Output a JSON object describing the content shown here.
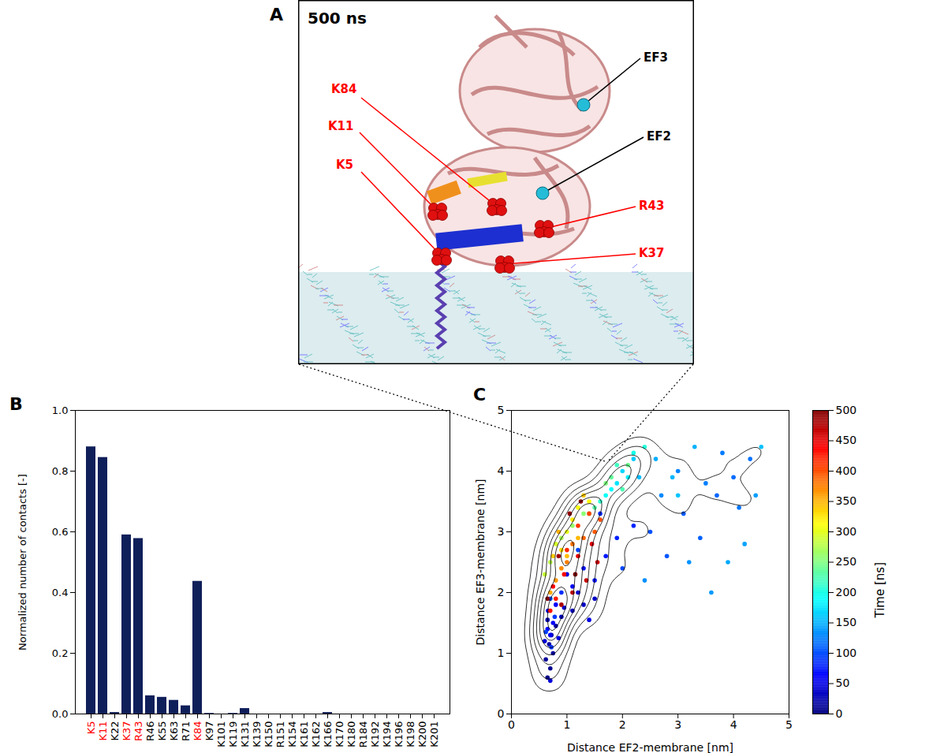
{
  "chart_data": [
    {
      "type": "diagram",
      "panel": "A",
      "title": "500 ns",
      "labels": [
        {
          "text": "K84",
          "color": "red"
        },
        {
          "text": "K11",
          "color": "red"
        },
        {
          "text": "K5",
          "color": "red"
        },
        {
          "text": "R43",
          "color": "red"
        },
        {
          "text": "K37",
          "color": "red"
        },
        {
          "text": "EF3",
          "color": "black"
        },
        {
          "text": "EF2",
          "color": "black"
        }
      ]
    },
    {
      "type": "bar",
      "panel": "B",
      "ylabel": "Normalized number of contacts [-]",
      "categories": [
        "K5",
        "K11",
        "K22",
        "K37",
        "R43",
        "R46",
        "K55",
        "K63",
        "R71",
        "K84",
        "K97",
        "K101",
        "K119",
        "K131",
        "K139",
        "K150",
        "R151",
        "K154",
        "K161",
        "K162",
        "K166",
        "K170",
        "K180",
        "R184",
        "K192",
        "K194",
        "K196",
        "K198",
        "K200",
        "K201"
      ],
      "values": [
        0.88,
        0.845,
        0.005,
        0.59,
        0.578,
        0.06,
        0.055,
        0.045,
        0.027,
        0.437,
        0.002,
        0,
        0.002,
        0.018,
        0,
        0,
        0,
        0,
        0,
        0,
        0.005,
        0,
        0,
        0,
        0,
        0,
        0,
        0,
        0,
        0
      ],
      "color": "#0f1f5a",
      "highlighted": [
        "K5",
        "K11",
        "K37",
        "R43",
        "K84"
      ],
      "highlight_color": "red",
      "ylim": [
        0,
        1
      ],
      "yticks": [
        {
          "value": 0,
          "label": "0.0"
        },
        {
          "value": 0.2,
          "label": "0.2"
        },
        {
          "value": 0.4,
          "label": "0.4"
        },
        {
          "value": 0.6,
          "label": "0.6"
        },
        {
          "value": 0.8,
          "label": "0.8"
        },
        {
          "value": 1,
          "label": "1.0"
        }
      ]
    },
    {
      "type": "scatter",
      "panel": "C",
      "xlabel": "Distance EF2-membrane [nm]",
      "ylabel": "Distance EF3-membrane [nm]",
      "x": [
        0.65,
        0.7,
        0.62,
        0.75,
        0.68,
        0.72,
        0.8,
        0.65,
        0.9,
        1.1,
        1.3,
        1.5,
        1.2,
        0.95,
        0.6,
        0.7,
        1.0,
        1.4,
        0.85,
        0.66,
        0.7,
        0.75,
        0.8,
        0.65,
        1.1,
        1.3,
        1.5,
        1.7,
        1.9,
        2.2,
        1.6,
        0.9,
        0.72,
        0.78,
        0.62,
        1.2,
        2.0,
        0.7,
        2.5,
        2.8,
        3.1,
        3.4,
        3.7,
        4.0,
        4.3,
        4.1,
        3.8,
        3.5,
        3.0,
        2.7,
        2.4,
        3.2,
        3.6,
        4.4,
        4.2,
        3.9,
        2.6,
        3.3,
        2.9,
        2.3,
        4.5,
        3.0,
        2.2,
        2.0,
        1.9,
        2.1,
        1.8,
        1.7,
        2.2,
        2.4,
        1.6,
        1.9,
        2.0,
        1.5,
        1.8,
        2.1,
        1.4,
        1.7,
        1.3,
        1.1,
        0.9,
        0.7,
        0.6,
        0.8,
        1.0,
        1.2,
        1.4,
        1.1,
        0.9,
        0.75,
        1.3,
        1.0,
        1.2,
        0.85,
        0.7,
        0.8,
        0.9,
        1.0,
        1.1,
        1.3,
        1.5,
        1.6,
        1.4,
        1.2,
        1.0,
        0.8,
        0.7,
        0.75,
        0.95,
        1.2,
        1.45,
        1.55,
        1.35,
        1.1,
        0.9,
        0.85,
        1.05,
        1.25,
        0.65,
        1.15
      ],
      "y": [
        0.6,
        0.75,
        0.9,
        1.0,
        1.15,
        1.3,
        1.45,
        1.55,
        1.6,
        1.7,
        1.8,
        1.9,
        2.0,
        1.75,
        1.2,
        0.55,
        2.3,
        1.55,
        1.25,
        1.7,
        1.3,
        1.5,
        1.8,
        1.4,
        2.1,
        2.4,
        2.2,
        2.6,
        2.9,
        3.1,
        3.3,
        2.0,
        1.1,
        1.6,
        1.35,
        2.7,
        2.4,
        1.9,
        3.0,
        2.6,
        3.3,
        2.9,
        3.6,
        3.9,
        4.2,
        3.4,
        4.3,
        3.8,
        4.0,
        3.6,
        2.2,
        2.5,
        2.0,
        3.6,
        2.8,
        2.5,
        4.2,
        4.4,
        3.9,
        3.9,
        4.4,
        3.6,
        4.2,
        4.0,
        3.8,
        3.9,
        3.7,
        3.6,
        4.3,
        4.4,
        3.5,
        4.1,
        3.7,
        3.4,
        3.9,
        4.1,
        3.3,
        3.8,
        3.3,
        3.1,
        2.9,
        2.5,
        2.3,
        2.8,
        3.0,
        3.4,
        3.5,
        3.2,
        2.7,
        2.6,
        3.6,
        2.6,
        2.9,
        3.0,
        2.0,
        2.2,
        2.4,
        2.5,
        2.8,
        2.9,
        3.0,
        3.2,
        3.3,
        3.1,
        2.7,
        1.9,
        1.7,
        2.1,
        2.3,
        2.6,
        2.8,
        2.5,
        2.2,
        2.0,
        1.8,
        2.6,
        3.3,
        3.5,
        1.9,
        2.3
      ],
      "time": [
        5,
        8,
        12,
        15,
        18,
        20,
        22,
        25,
        28,
        30,
        33,
        35,
        38,
        40,
        42,
        44,
        46,
        48,
        50,
        52,
        55,
        58,
        60,
        63,
        66,
        70,
        72,
        75,
        78,
        80,
        83,
        85,
        88,
        90,
        93,
        95,
        97,
        99,
        102,
        105,
        108,
        110,
        112,
        115,
        118,
        120,
        123,
        125,
        128,
        130,
        133,
        135,
        138,
        140,
        142,
        145,
        148,
        150,
        152,
        155,
        157,
        159,
        162,
        168,
        175,
        180,
        186,
        192,
        198,
        205,
        212,
        218,
        225,
        230,
        236,
        241,
        246,
        250,
        255,
        262,
        270,
        278,
        285,
        292,
        300,
        308,
        315,
        322,
        330,
        336,
        340,
        344,
        347,
        350,
        355,
        362,
        370,
        376,
        382,
        388,
        394,
        400,
        406,
        412,
        418,
        424,
        430,
        436,
        442,
        448,
        454,
        460,
        466,
        472,
        478,
        484,
        490,
        494,
        497,
        500
      ],
      "xlim": [
        0,
        5
      ],
      "xticks": [
        0,
        1,
        2,
        3,
        4,
        5
      ],
      "ylim": [
        0,
        5
      ],
      "yticks": [
        0,
        1,
        2,
        3,
        4,
        5
      ],
      "colorbar": {
        "label": "Time [ns]",
        "range": [
          0,
          500
        ],
        "ticks": [
          0,
          50,
          100,
          150,
          200,
          250,
          300,
          350,
          400,
          450,
          500
        ]
      }
    }
  ]
}
